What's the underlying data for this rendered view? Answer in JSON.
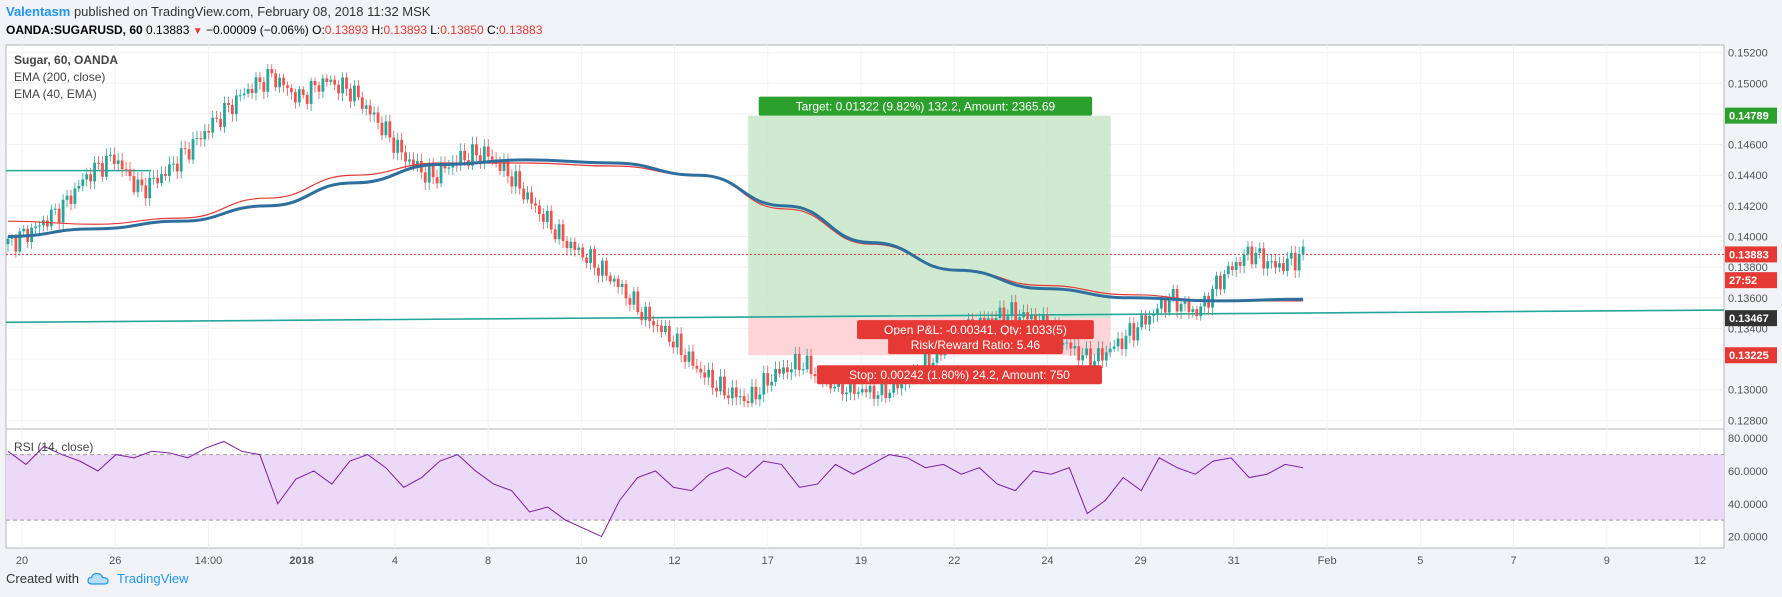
{
  "header": {
    "author": "Valentasm",
    "published": "published on TradingView.com, February 08, 2018 11:32 MSK",
    "symbol": "OANDA:SUGARUSD, 60",
    "last": "0.13883",
    "change": "−0.00009 (−0.06%)",
    "o_label": "O:",
    "o": "0.13893",
    "h_label": "H:",
    "h": "0.13893",
    "l_label": "L:",
    "l": "0.13850",
    "c_label": "C:",
    "c": "0.13883"
  },
  "legend": {
    "title": "Sugar, 60, OANDA",
    "ema200": "EMA (200, close)",
    "ema40": "EMA (40, EMA)",
    "rsi": "RSI (14, close)"
  },
  "annotations": {
    "target": "Target: 0.01322 (9.82%) 132.2, Amount: 2365.69",
    "open_pl": "Open P&L: -0.00341, Qty: 1033(5)",
    "risk_reward": "Risk/Reward Ratio: 5.46",
    "stop": "Stop: 0.00242 (1.80%) 24.2, Amount: 750"
  },
  "footer": {
    "created_with": "Created with",
    "brand": "TradingView"
  },
  "colors": {
    "up": "#26a69a",
    "down": "#ef5350",
    "ema200": "#2e6f9e",
    "ema40": "#e53935",
    "rsi": "#7b1fa2",
    "rsi_band": "#ecd9f7",
    "profit_zone": "#c8e6c9",
    "loss_zone": "#ffcdd2",
    "trendline": "#26a69a"
  },
  "chart_data": [
    {
      "type": "candlestick",
      "title": "Sugar, 60, OANDA",
      "ylim": [
        0.1275,
        0.1525
      ],
      "y_ticks": [
        "0.15200",
        "0.15000",
        "0.14800",
        "0.14600",
        "0.14400",
        "0.14200",
        "0.14000",
        "0.13800",
        "0.13600",
        "0.13400",
        "0.13200",
        "0.13000",
        "0.12800"
      ],
      "x_ticks": [
        "20",
        "26",
        "14:00",
        "2018",
        "4",
        "8",
        "10",
        "12",
        "17",
        "19",
        "22",
        "24",
        "29",
        "31",
        "Feb",
        "5",
        "7",
        "9",
        "12"
      ],
      "price_labels": [
        {
          "label": "0.14789",
          "value": 0.14789,
          "color": "#2ca02c"
        },
        {
          "label": "0.13883",
          "value": 0.13883,
          "color": "#e53935"
        },
        {
          "label": "27:52",
          "value": 0.13715,
          "color": "#e53935"
        },
        {
          "label": "0.13467",
          "value": 0.13467,
          "color": "#333333"
        },
        {
          "label": "0.13225",
          "value": 0.13225,
          "color": "#e53935"
        }
      ],
      "current_price": 0.13883,
      "position": {
        "entry": 0.13467,
        "target": 0.14789,
        "stop": 0.13225
      },
      "trendline": {
        "start": 0.1344,
        "end": 0.1352
      },
      "horizontal_level": 0.1443,
      "price_path": [
        0.1395,
        0.1405,
        0.1418,
        0.144,
        0.1452,
        0.143,
        0.1442,
        0.146,
        0.1478,
        0.1495,
        0.1505,
        0.149,
        0.1502,
        0.1495,
        0.1475,
        0.1452,
        0.1438,
        0.145,
        0.1455,
        0.144,
        0.1418,
        0.1398,
        0.1385,
        0.137,
        0.135,
        0.1335,
        0.1315,
        0.13,
        0.1293,
        0.131,
        0.1318,
        0.1305,
        0.13,
        0.1298,
        0.1306,
        0.132,
        0.1335,
        0.1345,
        0.135,
        0.1345,
        0.133,
        0.1318,
        0.133,
        0.1345,
        0.136,
        0.135,
        0.1375,
        0.139,
        0.138,
        0.1388
      ],
      "ema200_path": [
        0.14,
        0.1405,
        0.141,
        0.142,
        0.1435,
        0.1447,
        0.145,
        0.1448,
        0.144,
        0.142,
        0.1396,
        0.1378,
        0.1366,
        0.136,
        0.1358,
        0.1359
      ],
      "ema40_path": [
        0.141,
        0.1408,
        0.1412,
        0.1425,
        0.144,
        0.1448,
        0.1448,
        0.1446,
        0.144,
        0.1418,
        0.1395,
        0.1378,
        0.1368,
        0.1362,
        0.1358,
        0.1358
      ]
    },
    {
      "type": "line",
      "title": "RSI (14, close)",
      "ylim": [
        13,
        85
      ],
      "y_ticks": [
        "80.0000",
        "60.0000",
        "40.0000",
        "20.0000"
      ],
      "bands": [
        30,
        70
      ],
      "values": [
        72,
        64,
        75,
        70,
        66,
        60,
        70,
        68,
        72,
        71,
        68,
        74,
        78,
        72,
        70,
        40,
        55,
        60,
        52,
        66,
        70,
        62,
        50,
        56,
        66,
        70,
        60,
        52,
        48,
        35,
        38,
        30,
        25,
        20,
        42,
        56,
        60,
        50,
        48,
        58,
        62,
        56,
        66,
        64,
        50,
        52,
        64,
        58,
        64,
        70,
        68,
        62,
        64,
        58,
        62,
        52,
        48,
        60,
        58,
        62,
        34,
        42,
        56,
        48,
        68,
        62,
        58,
        66,
        68,
        56,
        58,
        64,
        62
      ]
    }
  ]
}
